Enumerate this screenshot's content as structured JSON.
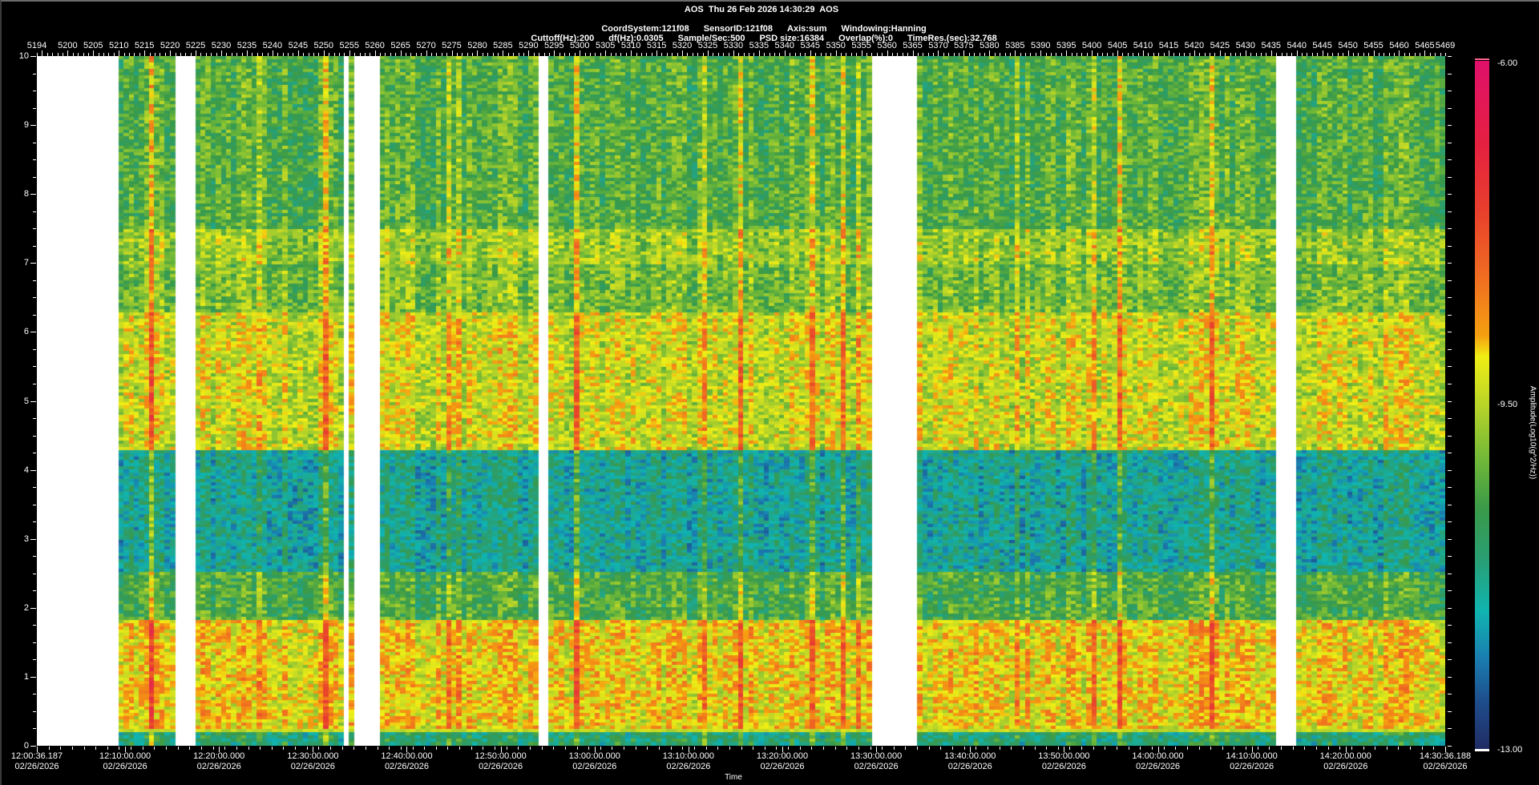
{
  "header": {
    "line1": "AOS  Thu 26 Feb 2026 14:30:29  AOS",
    "line2": [
      "CoordSystem:121f08",
      "SensorID:121f08",
      "Axis:sum",
      "Windowing:Hanning"
    ],
    "line3": [
      "Cuttoff(Hz):200",
      "df(Hz):0.0305",
      "Sample/Sec:500",
      "PSD size:16384",
      "Overlap(%):0",
      "TimeRes.(sec):32.768"
    ]
  },
  "chart_data": {
    "type": "heatmap",
    "title": "AOS  Thu 26 Feb 2026 14:30:29  AOS",
    "xlabel": "Time",
    "ylabel": "",
    "top_axis": {
      "range": [
        5194,
        5469
      ],
      "tick_labels": [
        "5194",
        "5200",
        "5205",
        "5210",
        "5215",
        "5220",
        "5225",
        "5230",
        "5235",
        "5240",
        "5245",
        "5250",
        "5255",
        "5260",
        "5265",
        "5270",
        "5275",
        "5280",
        "5285",
        "5290",
        "5295",
        "5300",
        "5305",
        "5310",
        "5315",
        "5320",
        "5325",
        "5330",
        "5335",
        "5340",
        "5345",
        "5350",
        "5355",
        "5360",
        "5365",
        "5370",
        "5375",
        "5380",
        "5385",
        "5390",
        "5395",
        "5400",
        "5405",
        "5410",
        "5415",
        "5420",
        "5425",
        "5430",
        "5435",
        "5440",
        "5445",
        "5450",
        "5455",
        "5460",
        "5465",
        "5469"
      ]
    },
    "y_axis": {
      "range": [
        0,
        10
      ],
      "tick_labels": [
        "0",
        "1",
        "2",
        "3",
        "4",
        "5",
        "6",
        "7",
        "8",
        "9",
        "10"
      ]
    },
    "time_axis": {
      "start": "12:00:36.187",
      "end": "14:30:36.188",
      "ticks": [
        {
          "time": "12:00:36.187",
          "date": "02/26/2026",
          "offset_sec": 0
        },
        {
          "time": "12:10:00.000",
          "date": "02/26/2026",
          "offset_sec": 563.813
        },
        {
          "time": "12:20:00.000",
          "date": "02/26/2026",
          "offset_sec": 1163.813
        },
        {
          "time": "12:30:00.000",
          "date": "02/26/2026",
          "offset_sec": 1763.813
        },
        {
          "time": "12:40:00.000",
          "date": "02/26/2026",
          "offset_sec": 2363.813
        },
        {
          "time": "12:50:00.000",
          "date": "02/26/2026",
          "offset_sec": 2963.813
        },
        {
          "time": "13:00:00.000",
          "date": "02/26/2026",
          "offset_sec": 3563.813
        },
        {
          "time": "13:10:00.000",
          "date": "02/26/2026",
          "offset_sec": 4163.813
        },
        {
          "time": "13:20:00.000",
          "date": "02/26/2026",
          "offset_sec": 4763.813
        },
        {
          "time": "13:30:00.000",
          "date": "02/26/2026",
          "offset_sec": 5363.813
        },
        {
          "time": "13:40:00.000",
          "date": "02/26/2026",
          "offset_sec": 5963.813
        },
        {
          "time": "13:50:00.000",
          "date": "02/26/2026",
          "offset_sec": 6563.813
        },
        {
          "time": "14:00:00.000",
          "date": "02/26/2026",
          "offset_sec": 7163.813
        },
        {
          "time": "14:10:00.000",
          "date": "02/26/2026",
          "offset_sec": 7763.813
        },
        {
          "time": "14:20:00.000",
          "date": "02/26/2026",
          "offset_sec": 8363.813
        },
        {
          "time": "14:30:36.188",
          "date": "02/26/2026",
          "offset_sec": 9000
        }
      ]
    },
    "no_data_frame_ranges": [
      [
        5194,
        5210
      ],
      [
        5221,
        5224.5
      ],
      [
        5254,
        5255
      ],
      [
        5256.5,
        5261
      ],
      [
        5292,
        5293.5
      ],
      [
        5357,
        5366
      ],
      [
        5436.5,
        5440
      ]
    ],
    "frequency_profile_approx": [
      {
        "hz": [
          0,
          0.2
        ],
        "level": -11.0
      },
      {
        "hz": [
          0.2,
          1.8
        ],
        "level": -9.0
      },
      {
        "hz": [
          1.8,
          2.5
        ],
        "level": -10.4
      },
      {
        "hz": [
          2.5,
          4.3
        ],
        "level": -11.4
      },
      {
        "hz": [
          4.3,
          6.3
        ],
        "level": -9.3
      },
      {
        "hz": [
          6.3,
          7.0
        ],
        "level": -10.0
      },
      {
        "hz": [
          7.0,
          7.5
        ],
        "level": -9.7
      },
      {
        "hz": [
          7.5,
          10
        ],
        "level": -10.3
      }
    ],
    "colorbar": {
      "label": "Amplitude(Log10(g^2/Hz))",
      "range": [
        -13,
        -6
      ],
      "tick_labels": [
        "-6.00",
        "-9.50",
        "-13.00"
      ],
      "colors": [
        "#e0106a",
        "#e8402c",
        "#f07020",
        "#f5a010",
        "#f0ee14",
        "#b8d428",
        "#70b838",
        "#3a9a48",
        "#2a9e70",
        "#10b4b0",
        "#1a7cb0",
        "#1e4e8c",
        "#202c64"
      ]
    }
  }
}
